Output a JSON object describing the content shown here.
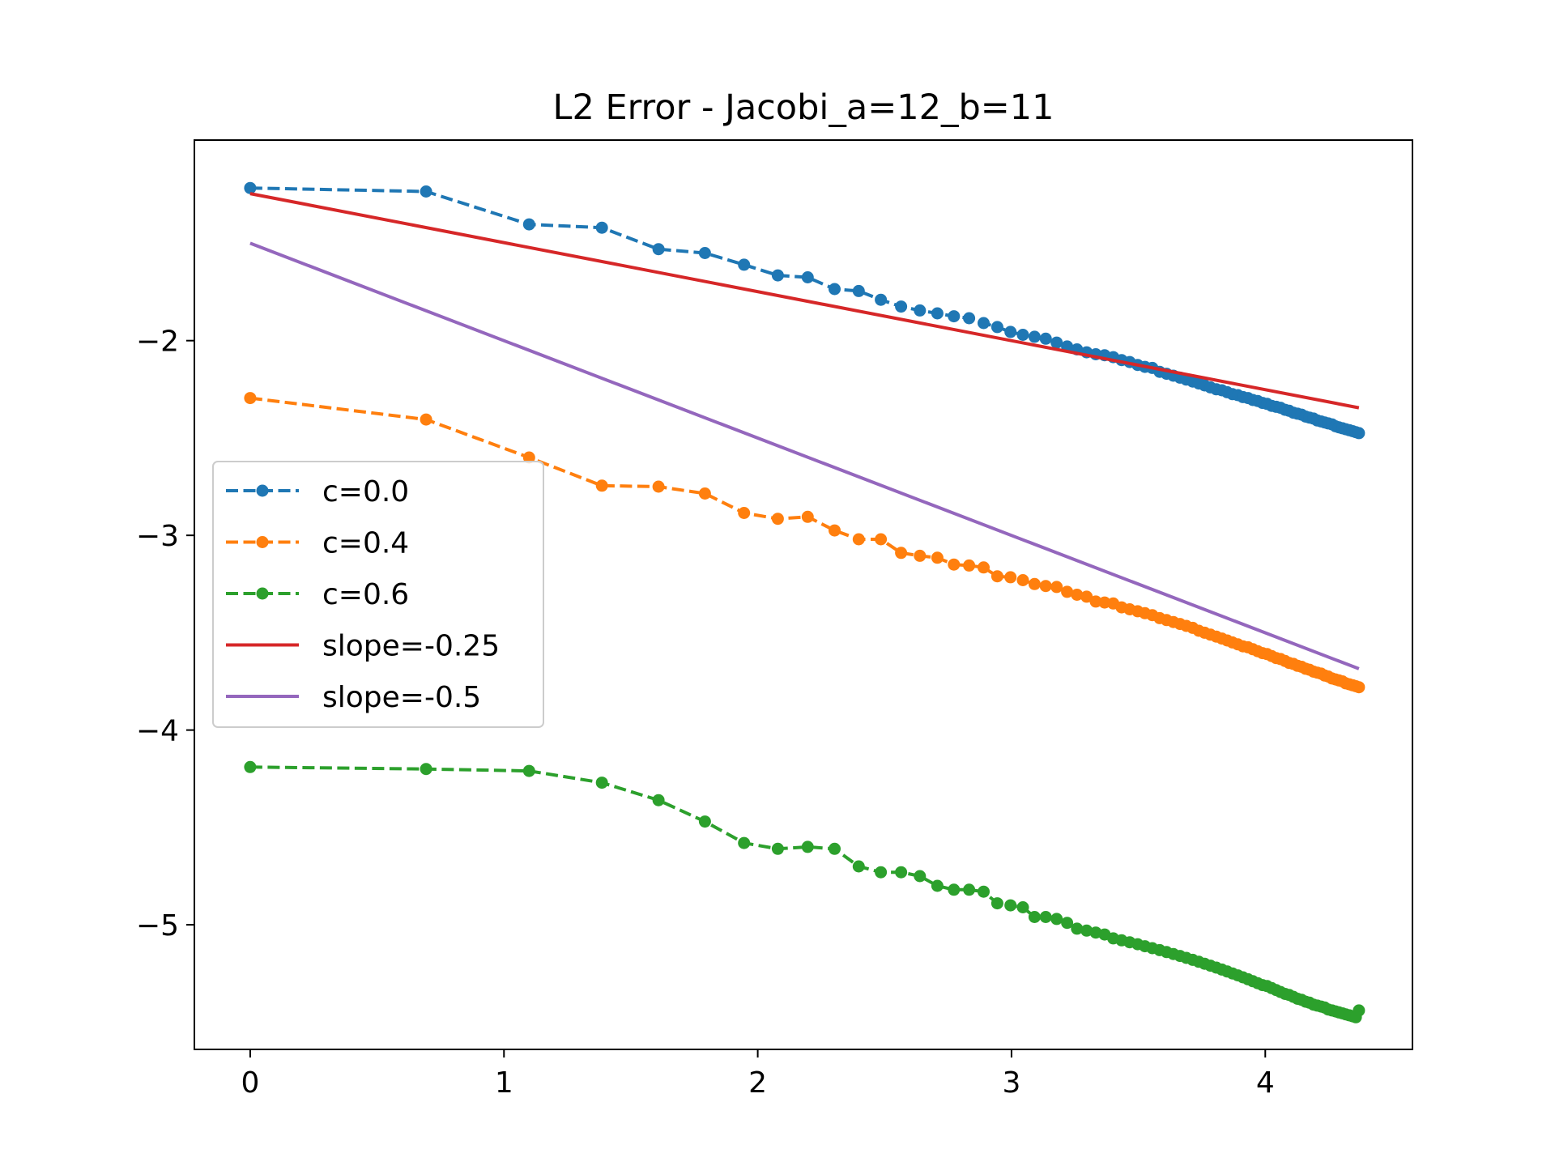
{
  "chart_data": {
    "type": "line",
    "title": "L2 Error - Jacobi_a=12_b=11",
    "xlabel": "",
    "ylabel": "",
    "xlim": [
      -0.22,
      4.58
    ],
    "ylim": [
      -5.64,
      -0.97
    ],
    "grid": false,
    "legend_position": "center-left",
    "xticks": [
      {
        "value": 0,
        "label": "0"
      },
      {
        "value": 1,
        "label": "1"
      },
      {
        "value": 2,
        "label": "2"
      },
      {
        "value": 3,
        "label": "3"
      },
      {
        "value": 4,
        "label": "4"
      }
    ],
    "yticks": [
      {
        "value": -2,
        "label": "−2"
      },
      {
        "value": -3,
        "label": "−3"
      },
      {
        "value": -4,
        "label": "−4"
      },
      {
        "value": -5,
        "label": "−5"
      }
    ],
    "series": [
      {
        "name": "c=0.0",
        "label": "c=0.0",
        "color": "#1f77b4",
        "style": "dashed-dots",
        "x": [
          0,
          0.693,
          1.099,
          1.386,
          1.609,
          1.792,
          1.946,
          2.079,
          2.197,
          2.303,
          2.398,
          2.485,
          2.565,
          2.639,
          2.708,
          2.773,
          2.833,
          2.89,
          2.944,
          2.996,
          3.045,
          3.091,
          3.135,
          3.178,
          3.219,
          3.258,
          3.296,
          3.332,
          3.367,
          3.401,
          3.434,
          3.466,
          3.497,
          3.526,
          3.555,
          3.584,
          3.611,
          3.638,
          3.664,
          3.689,
          3.714,
          3.738,
          3.761,
          3.784,
          3.807,
          3.829,
          3.85,
          3.871,
          3.892,
          3.912,
          3.932,
          3.951,
          3.97,
          3.989,
          4.007,
          4.025,
          4.043,
          4.06,
          4.078,
          4.094,
          4.111,
          4.127,
          4.143,
          4.159,
          4.174,
          4.19,
          4.205,
          4.22,
          4.234,
          4.248,
          4.263,
          4.277,
          4.29,
          4.304,
          4.317,
          4.331,
          4.344,
          4.357,
          4.369
        ],
        "values": [
          -1.216,
          -1.234,
          -1.403,
          -1.42,
          -1.53,
          -1.55,
          -1.61,
          -1.665,
          -1.675,
          -1.735,
          -1.745,
          -1.79,
          -1.825,
          -1.845,
          -1.86,
          -1.875,
          -1.885,
          -1.91,
          -1.93,
          -1.955,
          -1.97,
          -1.98,
          -1.99,
          -2.01,
          -2.03,
          -2.045,
          -2.06,
          -2.07,
          -2.075,
          -2.085,
          -2.1,
          -2.11,
          -2.125,
          -2.135,
          -2.14,
          -2.16,
          -2.17,
          -2.18,
          -2.19,
          -2.2,
          -2.21,
          -2.22,
          -2.23,
          -2.24,
          -2.25,
          -2.255,
          -2.265,
          -2.275,
          -2.28,
          -2.29,
          -2.295,
          -2.305,
          -2.31,
          -2.32,
          -2.325,
          -2.335,
          -2.34,
          -2.345,
          -2.355,
          -2.36,
          -2.37,
          -2.375,
          -2.38,
          -2.39,
          -2.395,
          -2.4,
          -2.41,
          -2.415,
          -2.42,
          -2.425,
          -2.43,
          -2.44,
          -2.445,
          -2.45,
          -2.455,
          -2.46,
          -2.465,
          -2.47,
          -2.475
        ]
      },
      {
        "name": "c=0.4",
        "label": "c=0.4",
        "color": "#ff7f0e",
        "style": "dashed-dots",
        "x": [
          0,
          0.693,
          1.099,
          1.386,
          1.609,
          1.792,
          1.946,
          2.079,
          2.197,
          2.303,
          2.398,
          2.485,
          2.565,
          2.639,
          2.708,
          2.773,
          2.833,
          2.89,
          2.944,
          2.996,
          3.045,
          3.091,
          3.135,
          3.178,
          3.219,
          3.258,
          3.296,
          3.332,
          3.367,
          3.401,
          3.434,
          3.466,
          3.497,
          3.526,
          3.555,
          3.584,
          3.611,
          3.638,
          3.664,
          3.689,
          3.714,
          3.738,
          3.761,
          3.784,
          3.807,
          3.829,
          3.85,
          3.871,
          3.892,
          3.912,
          3.932,
          3.951,
          3.97,
          3.989,
          4.007,
          4.025,
          4.043,
          4.06,
          4.078,
          4.094,
          4.111,
          4.127,
          4.143,
          4.159,
          4.174,
          4.19,
          4.205,
          4.22,
          4.234,
          4.248,
          4.263,
          4.277,
          4.29,
          4.304,
          4.317,
          4.331,
          4.344,
          4.357,
          4.369
        ],
        "values": [
          -2.295,
          -2.405,
          -2.6,
          -2.745,
          -2.75,
          -2.785,
          -2.885,
          -2.915,
          -2.905,
          -2.975,
          -3.02,
          -3.02,
          -3.09,
          -3.105,
          -3.115,
          -3.15,
          -3.155,
          -3.165,
          -3.21,
          -3.215,
          -3.23,
          -3.25,
          -3.26,
          -3.265,
          -3.29,
          -3.305,
          -3.315,
          -3.34,
          -3.345,
          -3.35,
          -3.37,
          -3.38,
          -3.39,
          -3.4,
          -3.41,
          -3.425,
          -3.435,
          -3.445,
          -3.455,
          -3.465,
          -3.475,
          -3.49,
          -3.5,
          -3.51,
          -3.52,
          -3.53,
          -3.54,
          -3.55,
          -3.56,
          -3.57,
          -3.575,
          -3.585,
          -3.595,
          -3.605,
          -3.61,
          -3.62,
          -3.63,
          -3.635,
          -3.645,
          -3.655,
          -3.66,
          -3.67,
          -3.675,
          -3.685,
          -3.69,
          -3.7,
          -3.705,
          -3.71,
          -3.72,
          -3.725,
          -3.735,
          -3.74,
          -3.745,
          -3.75,
          -3.76,
          -3.765,
          -3.77,
          -3.775,
          -3.78
        ]
      },
      {
        "name": "c=0.6",
        "label": "c=0.6",
        "color": "#2ca02c",
        "style": "dashed-dots",
        "x": [
          0,
          0.693,
          1.099,
          1.386,
          1.609,
          1.792,
          1.946,
          2.079,
          2.197,
          2.303,
          2.398,
          2.485,
          2.565,
          2.639,
          2.708,
          2.773,
          2.833,
          2.89,
          2.944,
          2.996,
          3.045,
          3.091,
          3.135,
          3.178,
          3.219,
          3.258,
          3.296,
          3.332,
          3.367,
          3.401,
          3.434,
          3.466,
          3.497,
          3.526,
          3.555,
          3.584,
          3.611,
          3.638,
          3.664,
          3.689,
          3.714,
          3.738,
          3.761,
          3.784,
          3.807,
          3.829,
          3.85,
          3.871,
          3.892,
          3.912,
          3.932,
          3.951,
          3.97,
          3.989,
          4.007,
          4.025,
          4.043,
          4.06,
          4.078,
          4.094,
          4.111,
          4.127,
          4.143,
          4.159,
          4.174,
          4.19,
          4.205,
          4.22,
          4.234,
          4.248,
          4.263,
          4.277,
          4.29,
          4.304,
          4.317,
          4.331,
          4.344,
          4.357,
          4.369
        ],
        "values": [
          -4.19,
          -4.2,
          -4.21,
          -4.27,
          -4.36,
          -4.47,
          -4.58,
          -4.61,
          -4.6,
          -4.61,
          -4.7,
          -4.73,
          -4.73,
          -4.75,
          -4.8,
          -4.82,
          -4.82,
          -4.83,
          -4.89,
          -4.9,
          -4.91,
          -4.96,
          -4.96,
          -4.97,
          -4.99,
          -5.02,
          -5.03,
          -5.04,
          -5.05,
          -5.07,
          -5.08,
          -5.09,
          -5.1,
          -5.11,
          -5.12,
          -5.13,
          -5.14,
          -5.15,
          -5.16,
          -5.17,
          -5.18,
          -5.19,
          -5.2,
          -5.21,
          -5.22,
          -5.23,
          -5.24,
          -5.25,
          -5.26,
          -5.27,
          -5.28,
          -5.29,
          -5.3,
          -5.31,
          -5.315,
          -5.325,
          -5.335,
          -5.345,
          -5.355,
          -5.36,
          -5.37,
          -5.38,
          -5.385,
          -5.395,
          -5.4,
          -5.41,
          -5.415,
          -5.42,
          -5.425,
          -5.435,
          -5.44,
          -5.445,
          -5.45,
          -5.455,
          -5.46,
          -5.465,
          -5.47,
          -5.475,
          -5.44
        ]
      },
      {
        "name": "slope=-0.25",
        "label": "slope=-0.25",
        "color": "#d62728",
        "style": "solid",
        "x": [
          0,
          4.369
        ],
        "values": [
          -1.245,
          -2.345
        ]
      },
      {
        "name": "slope=-0.5",
        "label": "slope=-0.5",
        "color": "#9467bd",
        "style": "solid",
        "x": [
          0,
          4.369
        ],
        "values": [
          -1.5,
          -3.685
        ]
      }
    ]
  }
}
